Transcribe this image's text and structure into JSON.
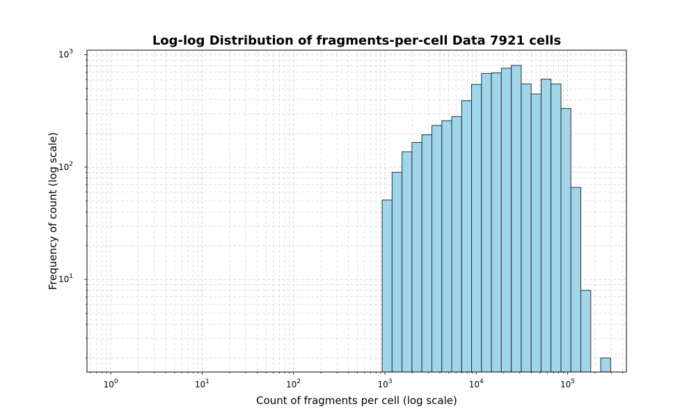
{
  "chart_data": {
    "type": "bar",
    "title": "Log-log Distribution of fragments-per-cell Data 7921 cells",
    "xlabel": "Count of fragments per cell (log scale)",
    "ylabel": "Frequency of count (log scale)",
    "x_scale": "log",
    "y_scale": "log",
    "xlim": [
      0.55,
      440000
    ],
    "ylim": [
      1.5,
      1100
    ],
    "grid": true,
    "x_ticks": [
      {
        "base": "10",
        "exp": "0",
        "value": 1
      },
      {
        "base": "10",
        "exp": "1",
        "value": 10
      },
      {
        "base": "10",
        "exp": "2",
        "value": 100
      },
      {
        "base": "10",
        "exp": "3",
        "value": 1000
      },
      {
        "base": "10",
        "exp": "4",
        "value": 10000
      },
      {
        "base": "10",
        "exp": "5",
        "value": 100000
      }
    ],
    "y_ticks": [
      {
        "base": "10",
        "exp": "1",
        "value": 10
      },
      {
        "base": "10",
        "exp": "2",
        "value": 100
      },
      {
        "base": "10",
        "exp": "3",
        "value": 1000
      }
    ],
    "bins": [
      {
        "x0": 935,
        "x1": 1200,
        "count": 51
      },
      {
        "x0": 1200,
        "x1": 1540,
        "count": 90
      },
      {
        "x0": 1540,
        "x1": 1980,
        "count": 137
      },
      {
        "x0": 1980,
        "x1": 2540,
        "count": 166
      },
      {
        "x0": 2540,
        "x1": 3270,
        "count": 194
      },
      {
        "x0": 3270,
        "x1": 4200,
        "count": 235
      },
      {
        "x0": 4200,
        "x1": 5390,
        "count": 259
      },
      {
        "x0": 5390,
        "x1": 6920,
        "count": 282
      },
      {
        "x0": 6920,
        "x1": 8890,
        "count": 390
      },
      {
        "x0": 8890,
        "x1": 11420,
        "count": 545
      },
      {
        "x0": 11420,
        "x1": 14670,
        "count": 682
      },
      {
        "x0": 14670,
        "x1": 18840,
        "count": 690
      },
      {
        "x0": 18840,
        "x1": 24200,
        "count": 760
      },
      {
        "x0": 24200,
        "x1": 31080,
        "count": 805
      },
      {
        "x0": 31080,
        "x1": 39920,
        "count": 550
      },
      {
        "x0": 39920,
        "x1": 51270,
        "count": 448
      },
      {
        "x0": 51270,
        "x1": 65850,
        "count": 608
      },
      {
        "x0": 65850,
        "x1": 84580,
        "count": 550
      },
      {
        "x0": 84580,
        "x1": 108600,
        "count": 333
      },
      {
        "x0": 108600,
        "x1": 139500,
        "count": 66
      },
      {
        "x0": 139500,
        "x1": 179200,
        "count": 8
      },
      {
        "x0": 179200,
        "x1": 230200,
        "count": 0
      },
      {
        "x0": 230200,
        "x1": 295700,
        "count": 2
      }
    ],
    "colors": {
      "bar_fill": "#9fd6ea",
      "bar_edge": "#2b3033",
      "grid": "#d0d0d0",
      "axes": "#000000"
    }
  }
}
